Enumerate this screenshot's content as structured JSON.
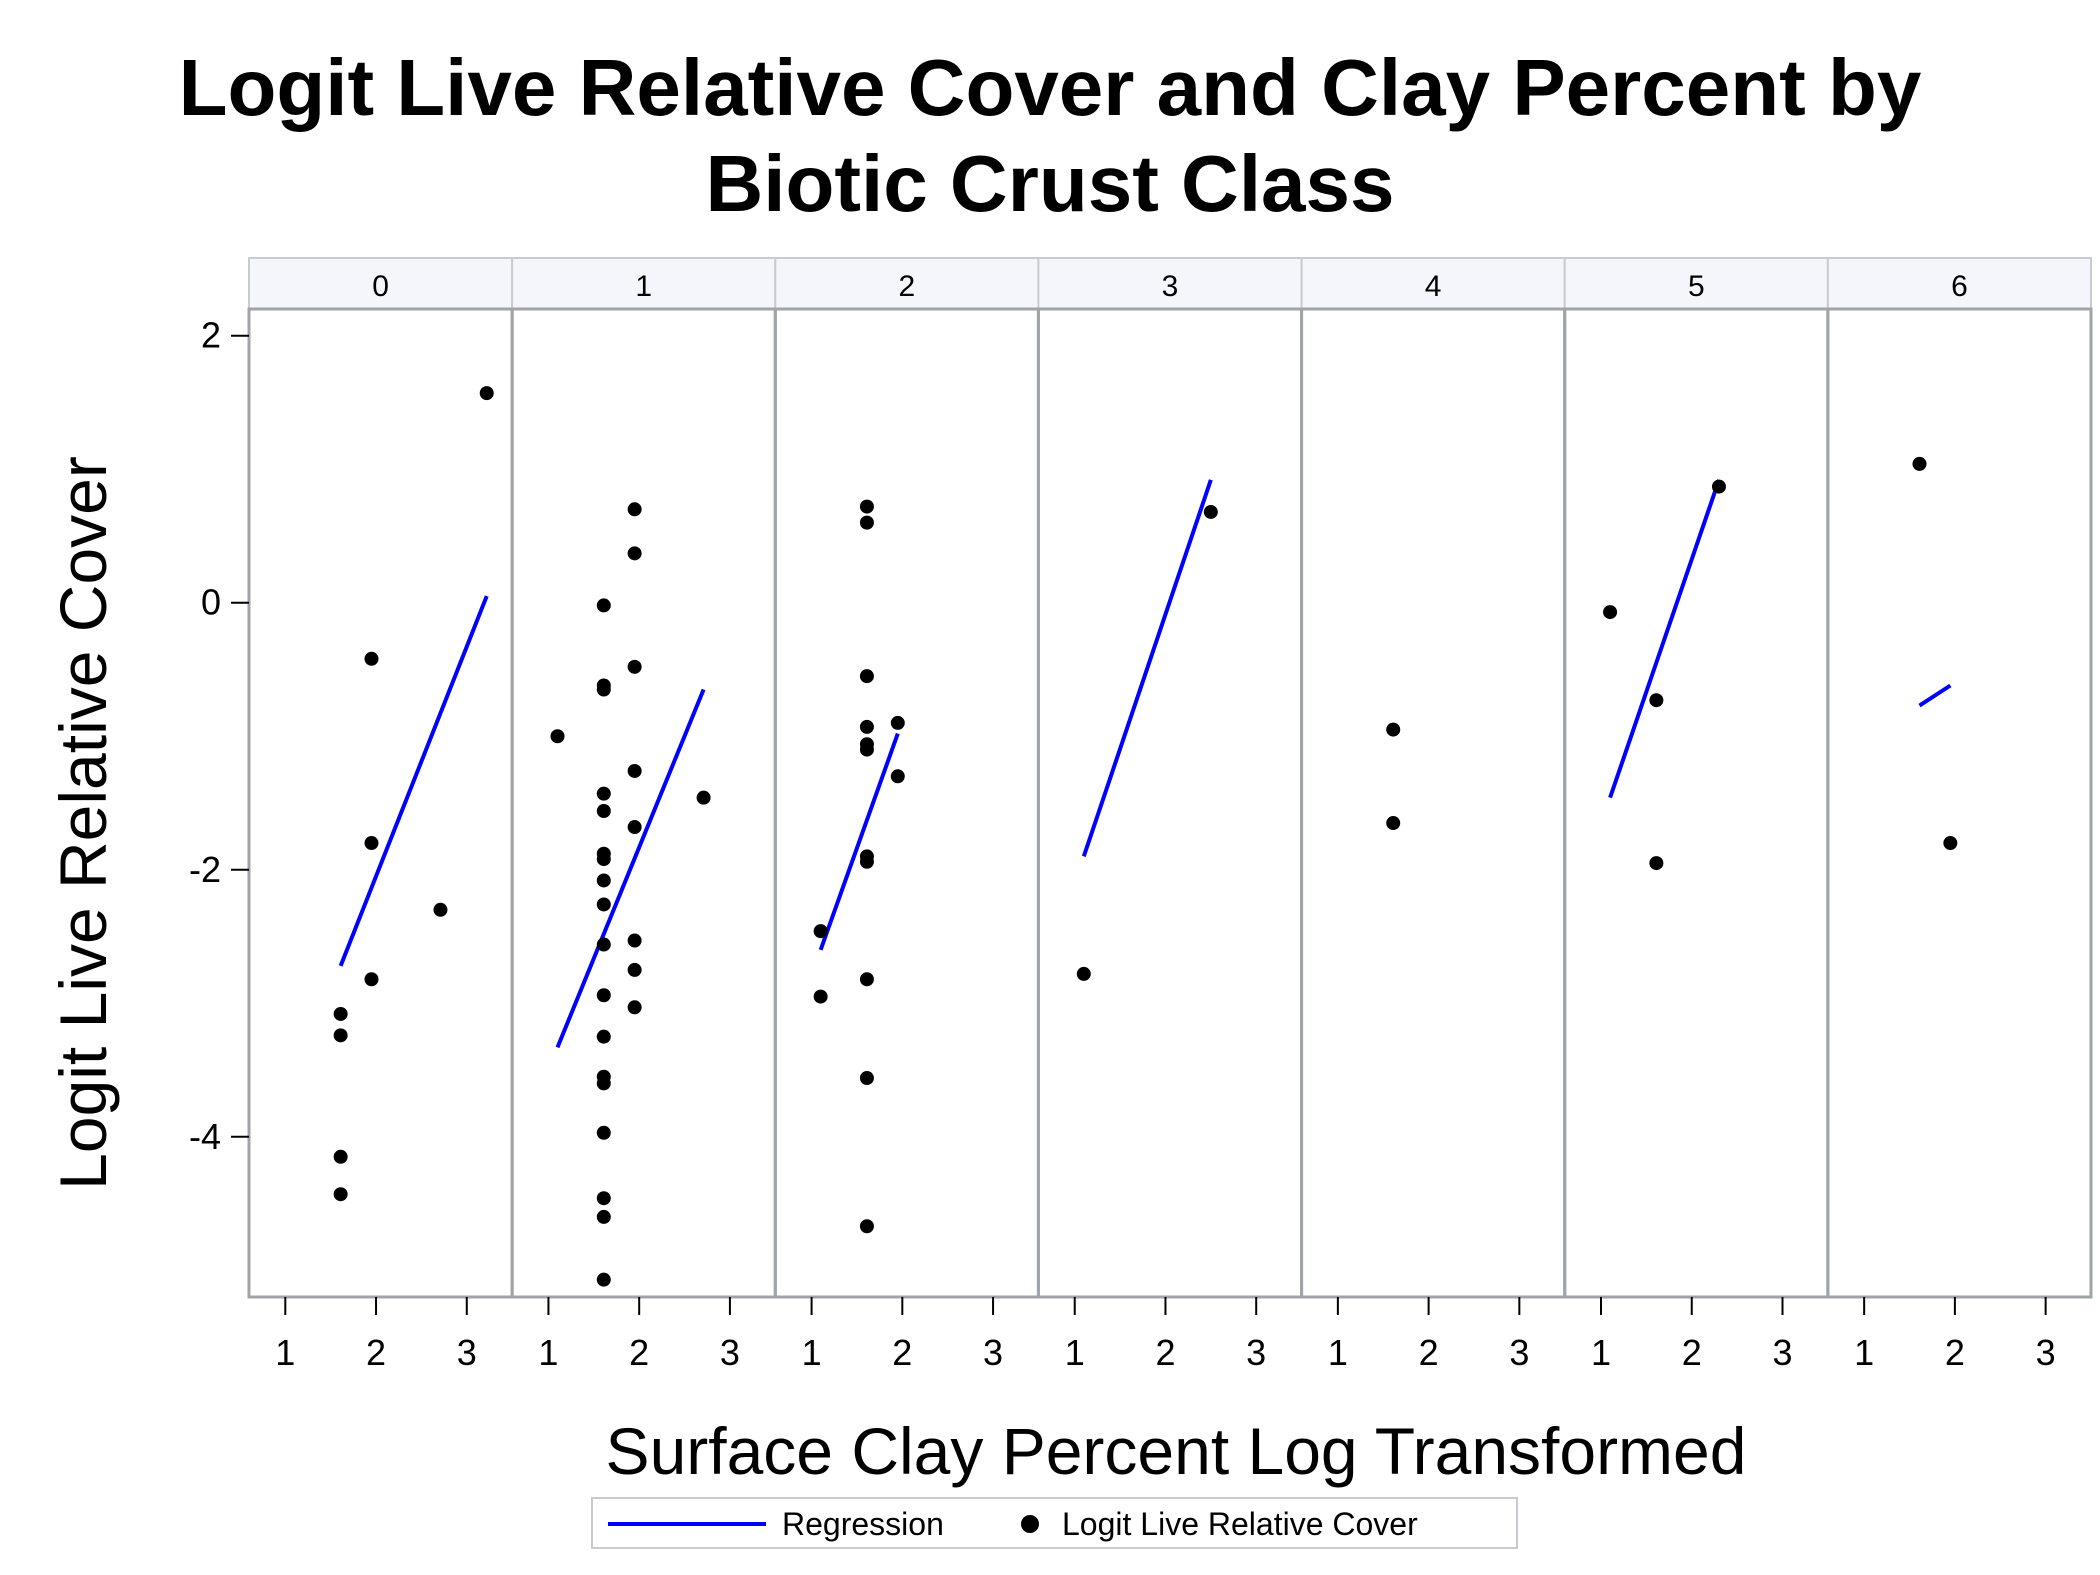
{
  "chart_data": {
    "type": "scatter",
    "title_lines": [
      "Logit Live Relative Cover and Clay Percent by",
      "Biotic Crust Class"
    ],
    "xlabel": "Surface Clay Percent Log Transformed",
    "ylabel": "Logit Live Relative Cover",
    "xlim": [
      0.6,
      3.5
    ],
    "ylim": [
      -5.2,
      2.2
    ],
    "x_ticks": [
      "1",
      "2",
      "3"
    ],
    "x_tick_values": [
      1,
      2,
      3
    ],
    "y_ticks": [
      "2",
      "0",
      "-2",
      "-4"
    ],
    "y_tick_values": [
      2,
      0,
      -2,
      -4
    ],
    "colors": {
      "regression": "#0000ff",
      "points": "#000000",
      "panel_header": "#f4f6fc",
      "frame": "#a0a4a8"
    },
    "legend": {
      "placement": "bottom",
      "items": [
        {
          "label": "Regression",
          "marker": "line"
        },
        {
          "label": "Logit Live Relative Cover",
          "marker": "dot"
        }
      ]
    },
    "panels": [
      {
        "label": "0",
        "points": [
          [
            1.95,
            -0.42
          ],
          [
            1.95,
            -1.8
          ],
          [
            1.95,
            -2.82
          ],
          [
            1.61,
            -3.08
          ],
          [
            1.61,
            -3.24
          ],
          [
            1.61,
            -4.15
          ],
          [
            1.61,
            -4.43
          ],
          [
            2.71,
            -2.3
          ],
          [
            3.22,
            1.57
          ]
        ],
        "regression": [
          [
            1.61,
            -2.72
          ],
          [
            3.22,
            0.05
          ]
        ]
      },
      {
        "label": "1",
        "points": [
          [
            1.1,
            -1.0
          ],
          [
            1.61,
            -0.02
          ],
          [
            1.61,
            -0.62
          ],
          [
            1.61,
            -0.65
          ],
          [
            1.61,
            -1.43
          ],
          [
            1.61,
            -1.56
          ],
          [
            1.61,
            -1.88
          ],
          [
            1.61,
            -1.92
          ],
          [
            1.61,
            -2.08
          ],
          [
            1.61,
            -2.26
          ],
          [
            1.61,
            -2.56
          ],
          [
            1.61,
            -2.94
          ],
          [
            1.61,
            -3.25
          ],
          [
            1.61,
            -3.55
          ],
          [
            1.61,
            -3.6
          ],
          [
            1.61,
            -3.97
          ],
          [
            1.61,
            -4.46
          ],
          [
            1.61,
            -4.6
          ],
          [
            1.61,
            -5.07
          ],
          [
            1.95,
            0.7
          ],
          [
            1.95,
            0.37
          ],
          [
            1.95,
            -0.48
          ],
          [
            1.95,
            -1.26
          ],
          [
            1.95,
            -1.68
          ],
          [
            1.95,
            -2.53
          ],
          [
            1.95,
            -2.75
          ],
          [
            1.95,
            -3.03
          ],
          [
            2.71,
            -1.46
          ]
        ],
        "regression": [
          [
            1.1,
            -3.33
          ],
          [
            2.71,
            -0.65
          ]
        ]
      },
      {
        "label": "2",
        "points": [
          [
            1.1,
            -2.46
          ],
          [
            1.1,
            -2.95
          ],
          [
            1.61,
            0.72
          ],
          [
            1.61,
            0.6
          ],
          [
            1.61,
            -0.55
          ],
          [
            1.61,
            -0.93
          ],
          [
            1.61,
            -1.06
          ],
          [
            1.61,
            -1.1
          ],
          [
            1.61,
            -1.9
          ],
          [
            1.61,
            -1.94
          ],
          [
            1.61,
            -2.82
          ],
          [
            1.61,
            -3.56
          ],
          [
            1.61,
            -4.67
          ],
          [
            1.95,
            -0.9
          ],
          [
            1.95,
            -1.3
          ]
        ],
        "regression": [
          [
            1.1,
            -2.6
          ],
          [
            1.95,
            -0.98
          ]
        ]
      },
      {
        "label": "3",
        "points": [
          [
            1.1,
            -2.78
          ],
          [
            2.5,
            0.68
          ]
        ],
        "regression": [
          [
            1.1,
            -1.9
          ],
          [
            2.5,
            0.92
          ]
        ]
      },
      {
        "label": "4",
        "points": [
          [
            1.61,
            -0.95
          ],
          [
            1.61,
            -1.65
          ]
        ],
        "regression": []
      },
      {
        "label": "5",
        "points": [
          [
            1.1,
            -0.07
          ],
          [
            1.61,
            -0.73
          ],
          [
            1.61,
            -1.95
          ],
          [
            2.3,
            0.87
          ]
        ],
        "regression": [
          [
            1.1,
            -1.46
          ],
          [
            2.3,
            0.92
          ]
        ]
      },
      {
        "label": "6",
        "points": [
          [
            1.61,
            1.04
          ],
          [
            1.95,
            -1.8
          ]
        ],
        "regression": [
          [
            1.61,
            -0.77
          ],
          [
            1.95,
            -0.62
          ]
        ]
      }
    ]
  }
}
